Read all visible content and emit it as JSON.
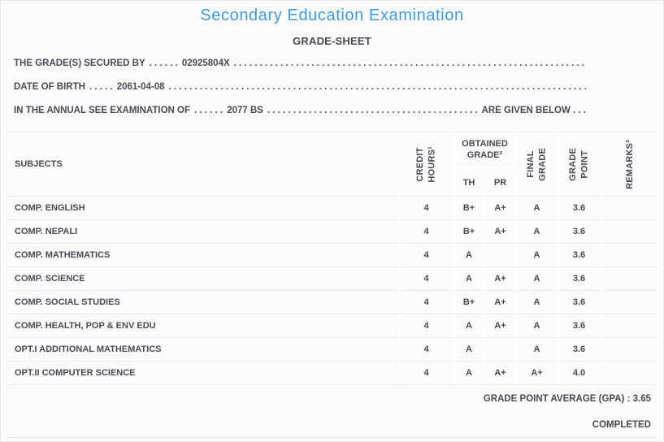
{
  "header": {
    "title": "Secondary Education Examination",
    "subtitle": "GRADE-SHEET"
  },
  "info_lines": {
    "secured_by": {
      "label": "THE GRADE(S) SECURED BY",
      "dots": ". . . . . .",
      "value": "02925804X",
      "fill": ". . . . . . . . . . . . . . . . . . . . . . . . . . . . . . . . . . . . . . . . . . . . . . . . . . . . . . . . . . . . . . . . . . . . . . . . . . . . . . . . . . . . . . . . . ."
    },
    "date_of_birth": {
      "label": "DATE OF BIRTH",
      "dots": ". . . . .",
      "value": "2061-04-08",
      "fill": ". . . . . . . . . . . . . . . . . . . . . . . . . . . . . . . . . . . . . . . . . . . . . . . . . . . . . . . . . . . . . . . . . . . . . . . . . . . . . . . . . . . . . . . . . ."
    },
    "examination": {
      "label": "IN THE ANNUAL SEE EXAMINATION OF",
      "dots": ". . . . . .",
      "value": "2077 BS",
      "fill": ". . . . . . . . . . . . . . . . . . . . . . . . . . . . . . . . . . . . . . . . . . . . . . . . . . . . . . . . . . . . . . . . . . . . . . . . . . . . . . . . . . . . . . . . . .",
      "suffix": "ARE GIVEN BELOW . . ."
    }
  },
  "table": {
    "headers": {
      "subjects": "SUBJECTS",
      "credit_hours": "CREDIT\nHOURS¹",
      "obtained_grade": "OBTAINED\nGRADE²",
      "th": "TH",
      "pr": "PR",
      "final_grade": "FINAL\nGRADE",
      "grade_point": "GRADE\nPOINT",
      "remarks": "REMARKS³"
    },
    "rows": [
      {
        "subject": "COMP. ENGLISH",
        "credit": "4",
        "th": "B+",
        "pr": "A+",
        "final": "A",
        "gp": "3.6",
        "remarks": ""
      },
      {
        "subject": "COMP. NEPALI",
        "credit": "4",
        "th": "B+",
        "pr": "A+",
        "final": "A",
        "gp": "3.6",
        "remarks": ""
      },
      {
        "subject": "COMP. MATHEMATICS",
        "credit": "4",
        "th": "A",
        "pr": "",
        "final": "A",
        "gp": "3.6",
        "remarks": ""
      },
      {
        "subject": "COMP. SCIENCE",
        "credit": "4",
        "th": "A",
        "pr": "A+",
        "final": "A",
        "gp": "3.6",
        "remarks": ""
      },
      {
        "subject": "COMP. SOCIAL STUDIES",
        "credit": "4",
        "th": "B+",
        "pr": "A+",
        "final": "A",
        "gp": "3.6",
        "remarks": ""
      },
      {
        "subject": "COMP. HEALTH, POP & ENV EDU",
        "credit": "4",
        "th": "A",
        "pr": "A+",
        "final": "A",
        "gp": "3.6",
        "remarks": ""
      },
      {
        "subject": "OPT.I ADDITIONAL MATHEMATICS",
        "credit": "4",
        "th": "A",
        "pr": "",
        "final": "A",
        "gp": "3.6",
        "remarks": ""
      },
      {
        "subject": "OPT.II COMPUTER SCIENCE",
        "credit": "4",
        "th": "A",
        "pr": "A+",
        "final": "A+",
        "gp": "4.0",
        "remarks": ""
      }
    ]
  },
  "footer": {
    "gpa": "GRADE POINT AVERAGE (GPA) : 3.65",
    "status": "COMPLETED"
  },
  "colors": {
    "accent_blue": "#3d9ae2",
    "text": "#4c4952",
    "background": "#fbfbfb",
    "row_divider": "#ebebee"
  }
}
